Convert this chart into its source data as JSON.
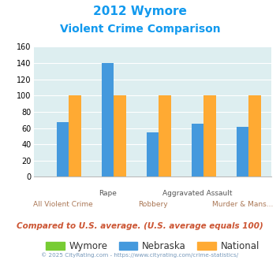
{
  "title_line1": "2012 Wymore",
  "title_line2": "Violent Crime Comparison",
  "categories": [
    "All Violent Crime",
    "Rape",
    "Robbery",
    "Aggravated Assault",
    "Murder & Mans..."
  ],
  "top_labels": [
    "",
    "Rape",
    "",
    "Aggravated Assault",
    ""
  ],
  "bottom_labels": [
    "All Violent Crime",
    "",
    "Robbery",
    "",
    "Murder & Mans..."
  ],
  "wymore_values": [
    0,
    0,
    0,
    0,
    0
  ],
  "nebraska_values": [
    67,
    140,
    55,
    65,
    61
  ],
  "national_values": [
    100,
    100,
    100,
    100,
    100
  ],
  "wymore_color": "#77cc33",
  "nebraska_color": "#4499dd",
  "national_color": "#ffaa33",
  "ylim": [
    0,
    160
  ],
  "yticks": [
    0,
    20,
    40,
    60,
    80,
    100,
    120,
    140,
    160
  ],
  "background_color": "#ddeef0",
  "title_color": "#1199ee",
  "footnote_color": "#cc5533",
  "copyright_color": "#7799bb",
  "legend_labels": [
    "Wymore",
    "Nebraska",
    "National"
  ],
  "footnote": "Compared to U.S. average. (U.S. average equals 100)",
  "copyright": "© 2025 CityRating.com - https://www.cityrating.com/crime-statistics/"
}
